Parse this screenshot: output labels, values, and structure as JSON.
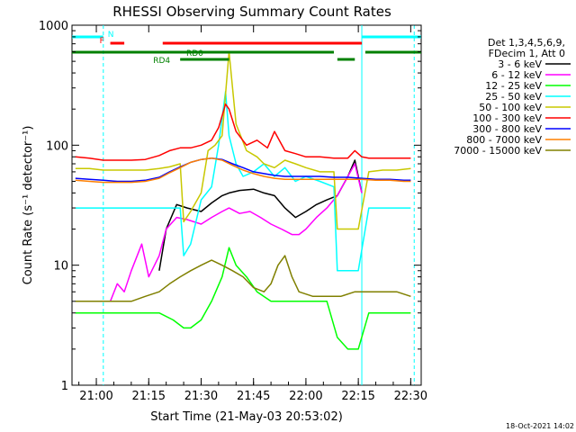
{
  "chart_data": {
    "type": "line",
    "title": "RHESSI Observing Summary Count Rates",
    "xlabel": "Start Time (21-May-03 20:53:02)",
    "ylabel": "Count Rate (s⁻¹ detector⁻¹)",
    "y_scale": "log",
    "ylim": [
      1,
      1000
    ],
    "xlim": [
      "20:53:02",
      "22:33:00"
    ],
    "x_ticks": [
      "21:00",
      "21:15",
      "21:30",
      "21:45",
      "22:00",
      "22:15",
      "22:30"
    ],
    "y_ticks": [
      "1",
      "10",
      "100",
      "1000"
    ],
    "legend_header": [
      "Det 1,3,4,5,6,9,",
      "FDecim 1, Att 0"
    ],
    "legend_position": "right",
    "grid": false,
    "footer_date": "18-Oct-2021 14:02",
    "series": [
      {
        "name": "3 - 6 keV",
        "color": "#000000",
        "x": [
          "21:18",
          "21:20",
          "21:23",
          "21:26",
          "21:30",
          "21:33",
          "21:36",
          "21:38",
          "21:41",
          "21:45",
          "21:48",
          "21:51",
          "21:54",
          "21:57",
          "22:00",
          "22:03",
          "22:06",
          "22:09",
          "22:12",
          "22:14",
          "22:16"
        ],
        "values": [
          9,
          20,
          32,
          30,
          28,
          33,
          38,
          40,
          42,
          43,
          40,
          38,
          30,
          25,
          28,
          32,
          35,
          38,
          55,
          75,
          40
        ]
      },
      {
        "name": "6 - 12 keV",
        "color": "#ff00ff",
        "x": [
          "21:04",
          "21:06",
          "21:08",
          "21:10",
          "21:13",
          "21:15",
          "21:18",
          "21:20",
          "21:23",
          "21:26",
          "21:30",
          "21:33",
          "21:36",
          "21:38",
          "21:41",
          "21:44",
          "21:47",
          "21:50",
          "21:53",
          "21:56",
          "21:58",
          "22:00",
          "22:03",
          "22:06",
          "22:09",
          "22:12",
          "22:14",
          "22:16"
        ],
        "values": [
          5,
          7,
          6,
          9,
          15,
          8,
          12,
          20,
          25,
          24,
          22,
          25,
          28,
          30,
          27,
          28,
          25,
          22,
          20,
          18,
          18,
          20,
          25,
          30,
          38,
          55,
          70,
          40
        ]
      },
      {
        "name": "12 - 25 keV",
        "color": "#00ff00",
        "x": [
          "20:54",
          "20:58",
          "21:02",
          "21:06",
          "21:10",
          "21:14",
          "21:18",
          "21:22",
          "21:25",
          "21:27",
          "21:30",
          "21:33",
          "21:36",
          "21:38",
          "21:40",
          "21:43",
          "21:46",
          "21:50",
          "21:54",
          "21:58",
          "22:02",
          "22:06",
          "22:09",
          "22:12",
          "22:15",
          "22:18",
          "22:22",
          "22:26",
          "22:30"
        ],
        "values": [
          4,
          4,
          4,
          4,
          4,
          4,
          4,
          3.5,
          3,
          3,
          3.5,
          5,
          8,
          14,
          10,
          8,
          6,
          5,
          5,
          5,
          5,
          5,
          2.5,
          2,
          2,
          4,
          4,
          4,
          4
        ]
      },
      {
        "name": "25 - 50 keV",
        "color": "#00ffff",
        "x": [
          "20:54",
          "20:58",
          "21:02",
          "21:06",
          "21:10",
          "21:14",
          "21:18",
          "21:20",
          "21:22",
          "21:24",
          "21:25",
          "21:27",
          "21:30",
          "21:33",
          "21:35",
          "21:37",
          "21:38",
          "21:40",
          "21:42",
          "21:45",
          "21:48",
          "21:51",
          "21:54",
          "21:57",
          "22:00",
          "22:04",
          "22:08",
          "22:09",
          "22:12",
          "22:15",
          "22:18",
          "22:22",
          "22:26",
          "22:30"
        ],
        "values": [
          30,
          30,
          30,
          30,
          30,
          30,
          30,
          30,
          30,
          30,
          12,
          15,
          35,
          45,
          100,
          280,
          120,
          70,
          55,
          60,
          70,
          55,
          65,
          50,
          55,
          50,
          45,
          9,
          9,
          9,
          30,
          30,
          30,
          30
        ]
      },
      {
        "name": "50 - 100 keV",
        "color": "#c8c800",
        "x": [
          "20:54",
          "20:58",
          "21:02",
          "21:06",
          "21:10",
          "21:14",
          "21:18",
          "21:21",
          "21:24",
          "21:25",
          "21:27",
          "21:30",
          "21:32",
          "21:34",
          "21:36",
          "21:38",
          "21:40",
          "21:43",
          "21:46",
          "21:48",
          "21:51",
          "21:54",
          "21:57",
          "22:00",
          "22:04",
          "22:08",
          "22:09",
          "22:12",
          "22:15",
          "22:18",
          "22:22",
          "22:26",
          "22:30"
        ],
        "values": [
          64,
          64,
          62,
          62,
          62,
          62,
          64,
          66,
          70,
          23,
          28,
          40,
          90,
          100,
          120,
          600,
          150,
          90,
          80,
          70,
          65,
          75,
          70,
          65,
          60,
          60,
          20,
          20,
          20,
          60,
          62,
          62,
          64
        ]
      },
      {
        "name": "100 - 300 keV",
        "color": "#ff0000",
        "x": [
          "20:54",
          "20:58",
          "21:02",
          "21:06",
          "21:10",
          "21:14",
          "21:18",
          "21:21",
          "21:24",
          "21:27",
          "21:30",
          "21:33",
          "21:35",
          "21:37",
          "21:38",
          "21:40",
          "21:43",
          "21:46",
          "21:49",
          "21:51",
          "21:54",
          "21:57",
          "22:00",
          "22:04",
          "22:08",
          "22:12",
          "22:14",
          "22:16",
          "22:18",
          "22:22",
          "22:26",
          "22:30"
        ],
        "values": [
          80,
          78,
          75,
          75,
          75,
          76,
          82,
          90,
          95,
          95,
          100,
          110,
          140,
          220,
          200,
          130,
          100,
          110,
          95,
          130,
          90,
          85,
          80,
          80,
          78,
          78,
          90,
          80,
          78,
          78,
          78,
          78
        ]
      },
      {
        "name": "300 - 800 keV",
        "color": "#0000ff",
        "x": [
          "20:54",
          "20:58",
          "21:02",
          "21:06",
          "21:10",
          "21:14",
          "21:18",
          "21:21",
          "21:24",
          "21:27",
          "21:30",
          "21:33",
          "21:36",
          "21:39",
          "21:42",
          "21:45",
          "21:48",
          "21:51",
          "21:54",
          "21:57",
          "22:00",
          "22:04",
          "22:08",
          "22:12",
          "22:16",
          "22:20",
          "22:24",
          "22:28",
          "22:30"
        ],
        "values": [
          53,
          52,
          51,
          50,
          50,
          51,
          54,
          60,
          66,
          72,
          76,
          78,
          76,
          70,
          65,
          60,
          58,
          56,
          55,
          55,
          55,
          55,
          54,
          54,
          53,
          52,
          52,
          51,
          51
        ]
      },
      {
        "name": "800 - 7000 keV",
        "color": "#ff8000",
        "x": [
          "20:54",
          "20:58",
          "21:02",
          "21:06",
          "21:10",
          "21:14",
          "21:18",
          "21:21",
          "21:24",
          "21:27",
          "21:30",
          "21:33",
          "21:36",
          "21:39",
          "21:42",
          "21:45",
          "21:48",
          "21:51",
          "21:54",
          "21:57",
          "22:00",
          "22:04",
          "22:08",
          "22:12",
          "22:16",
          "22:20",
          "22:24",
          "22:28",
          "22:30"
        ],
        "values": [
          51,
          50,
          49,
          49,
          49,
          50,
          53,
          59,
          65,
          72,
          76,
          78,
          75,
          68,
          62,
          58,
          55,
          53,
          52,
          52,
          52,
          52,
          52,
          52,
          52,
          51,
          51,
          50,
          50
        ]
      },
      {
        "name": "7000 - 15000 keV",
        "color": "#808000",
        "x": [
          "20:54",
          "20:58",
          "21:02",
          "21:06",
          "21:10",
          "21:14",
          "21:18",
          "21:21",
          "21:24",
          "21:27",
          "21:30",
          "21:33",
          "21:36",
          "21:39",
          "21:42",
          "21:45",
          "21:48",
          "21:50",
          "21:52",
          "21:54",
          "21:56",
          "21:58",
          "22:02",
          "22:06",
          "22:10",
          "22:14",
          "22:18",
          "22:22",
          "22:26",
          "22:30"
        ],
        "values": [
          5,
          5,
          5,
          5,
          5,
          5.5,
          6,
          7,
          8,
          9,
          10,
          11,
          10,
          9,
          8,
          6.5,
          6,
          7,
          10,
          12,
          8,
          6,
          5.5,
          5.5,
          5.5,
          6,
          6,
          6,
          6,
          5.5
        ]
      }
    ],
    "annotations": [
      {
        "label": "N",
        "color": "#00ffff",
        "intervals": [
          [
            "20:53:02",
            "21:02"
          ],
          [
            "22:16",
            "22:33"
          ]
        ]
      },
      {
        "label": "F",
        "color": "#ff0000",
        "intervals": [
          [
            "21:04",
            "21:08"
          ],
          [
            "21:19",
            "22:16"
          ]
        ]
      },
      {
        "label": "RD0",
        "color": "#008000",
        "intervals": [
          [
            "20:53:02",
            "22:08"
          ],
          [
            "22:17",
            "22:33"
          ]
        ]
      },
      {
        "label": "RD4",
        "color": "#008000",
        "intervals": [
          [
            "21:24",
            "21:38"
          ],
          [
            "22:09",
            "22:14"
          ]
        ]
      }
    ],
    "vertical_markers": [
      {
        "time": "21:02",
        "color": "#00ffff",
        "style": "dashed"
      },
      {
        "time": "22:16",
        "color": "#00ffff",
        "style": "solid"
      },
      {
        "time": "22:31",
        "color": "#00ffff",
        "style": "dashed"
      }
    ]
  }
}
